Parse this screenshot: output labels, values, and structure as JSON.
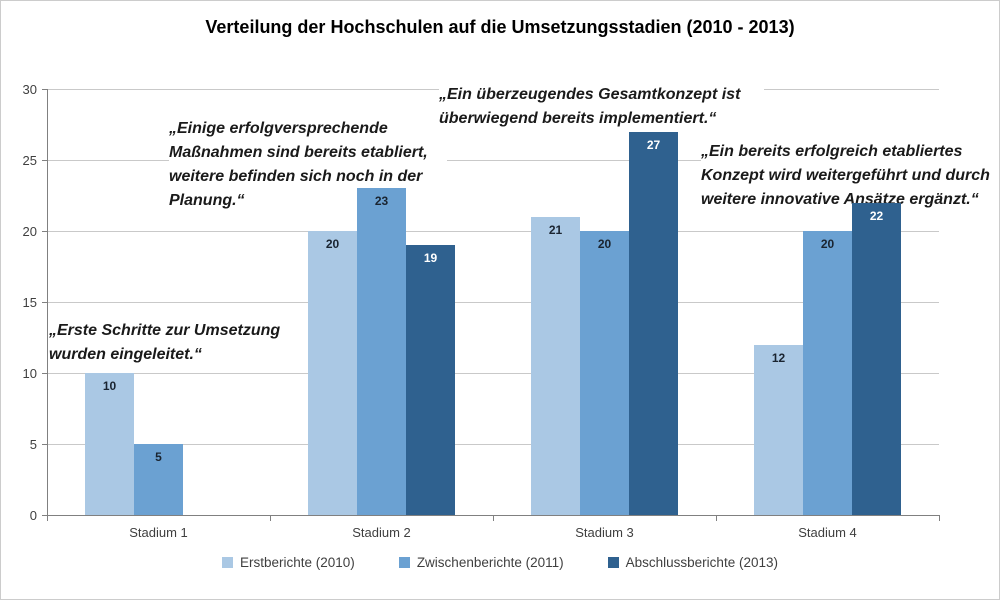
{
  "chart_data": {
    "type": "bar",
    "title": "Verteilung der Hochschulen auf die Umsetzungsstadien (2010 - 2013)",
    "xlabel": "",
    "ylabel": "",
    "ylim": [
      0,
      30
    ],
    "yticks": [
      0,
      5,
      10,
      15,
      20,
      25,
      30
    ],
    "grid": true,
    "legend_position": "bottom",
    "categories": [
      "Stadium 1",
      "Stadium 2",
      "Stadium 3",
      "Stadium 4"
    ],
    "series": [
      {
        "name": "Erstberichte (2010)",
        "color": "#AAC8E4",
        "label_color": "#1A2430",
        "values": [
          10,
          20,
          21,
          12
        ]
      },
      {
        "name": "Zwischenberichte (2011)",
        "color": "#6BA1D2",
        "label_color": "#1A2430",
        "values": [
          5,
          23,
          20,
          20
        ]
      },
      {
        "name": "Abschlussberichte (2013)",
        "color": "#2F618F",
        "label_color": "#FFFFFF",
        "values": [
          0,
          19,
          27,
          22
        ]
      }
    ],
    "annotations": [
      {
        "text": "„Erste Schritte zur Umsetzung wurden eingeleitet.“"
      },
      {
        "text": "„Einige erfolgversprechende Maßnahmen sind bereits etabliert, weitere befinden sich noch in der Planung.“"
      },
      {
        "text": "„Ein überzeugendes Gesamtkonzept ist überwiegend bereits implementiert.“"
      },
      {
        "text": "„Ein bereits erfolgreich etabliertes Konzept wird weitergeführt und durch weitere innovative Ansätze ergänzt.“"
      }
    ]
  }
}
